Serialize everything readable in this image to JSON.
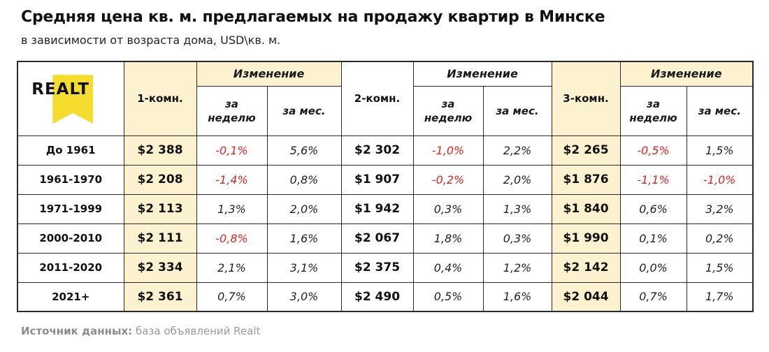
{
  "title": "Средняя цена кв. м. предлагаемых на продажу квартир в Минске",
  "subtitle": "в зависимости от возраста дома, USD\\кв. м.",
  "logo_text": "REALT",
  "headers": {
    "room1": "1-комн.",
    "room2": "2-комн.",
    "room3": "3-комн.",
    "change": "Изменение",
    "week_line1": "за",
    "week_line2": "неделю",
    "month": "за мес."
  },
  "rows": [
    {
      "label": "До 1961",
      "p1": "$2 388",
      "w1": "-0,1%",
      "m1": "5,6%",
      "p2": "$2 302",
      "w2": "-1,0%",
      "m2": "2,2%",
      "p3": "$2 265",
      "w3": "-0,5%",
      "m3": "1,5%"
    },
    {
      "label": "1961-1970",
      "p1": "$2 208",
      "w1": "-1,4%",
      "m1": "0,8%",
      "p2": "$1 907",
      "w2": "-0,2%",
      "m2": "2,0%",
      "p3": "$1 876",
      "w3": "-1,1%",
      "m3": "-1,0%"
    },
    {
      "label": "1971-1999",
      "p1": "$2 113",
      "w1": "1,3%",
      "m1": "2,0%",
      "p2": "$1 942",
      "w2": "0,3%",
      "m2": "1,3%",
      "p3": "$1 840",
      "w3": "0,6%",
      "m3": "3,2%"
    },
    {
      "label": "2000-2010",
      "p1": "$2 111",
      "w1": "-0,8%",
      "m1": "1,6%",
      "p2": "$2 067",
      "w2": "1,8%",
      "m2": "0,3%",
      "p3": "$1 990",
      "w3": "0,1%",
      "m3": "0,2%"
    },
    {
      "label": "2011-2020",
      "p1": "$2 334",
      "w1": "2,1%",
      "m1": "3,1%",
      "p2": "$2 375",
      "w2": "0,4%",
      "m2": "1,2%",
      "p3": "$2 142",
      "w3": "0,0%",
      "m3": "1,5%"
    },
    {
      "label": "2021+",
      "p1": "$2 361",
      "w1": "0,7%",
      "m1": "3,0%",
      "p2": "$2 490",
      "w2": "0,5%",
      "m2": "1,6%",
      "p3": "$2 044",
      "w3": "0,7%",
      "m3": "1,7%"
    }
  ],
  "source_label": "Источник данных:",
  "source_text": " база объявлений Realt",
  "colors": {
    "price_bg": "#fdf2cf",
    "negative": "#e0231f",
    "logo_yellow": "#f6dc2d"
  }
}
